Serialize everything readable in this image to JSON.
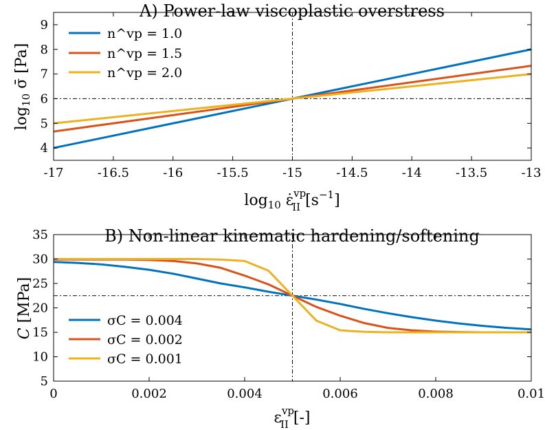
{
  "chart_data": [
    {
      "type": "line",
      "title": "A) Power-law viscoplastic overstress",
      "xlabel": "log10 ε̇II^vp [s^-1]",
      "ylabel": "log10 σ̄ [Pa]",
      "xlim": [
        -17,
        -13
      ],
      "ylim": [
        3.5,
        9.5
      ],
      "xticks": [
        -17,
        -16.5,
        -16,
        -15.5,
        -15,
        -14.5,
        -14,
        -13.5,
        -13
      ],
      "xtick_labels": [
        "-17",
        "-16.5",
        "-16",
        "-15.5",
        "-15",
        "-14.5",
        "-14",
        "-13.5",
        "-13"
      ],
      "yticks": [
        4,
        5,
        6,
        7,
        8,
        9
      ],
      "ytick_labels": [
        "4",
        "5",
        "6",
        "7",
        "8",
        "9"
      ],
      "grid": false,
      "legend_placement": "top-left",
      "reference_lines": {
        "x": -15,
        "y": 6
      },
      "x": [
        -17,
        -13
      ],
      "series": [
        {
          "name": "n^vp = 1.0",
          "color": "#0072BD",
          "values": [
            4.0,
            8.0
          ]
        },
        {
          "name": "n^vp = 1.5",
          "color": "#D95319",
          "values": [
            4.667,
            7.333
          ]
        },
        {
          "name": "n^vp = 2.0",
          "color": "#EDB120",
          "values": [
            5.0,
            7.0
          ]
        }
      ]
    },
    {
      "type": "line",
      "title": "B) Non-linear kinematic hardening/softening",
      "xlabel": "εII^vp [-]",
      "ylabel": "C [MPa]",
      "xlim": [
        0,
        0.01
      ],
      "ylim": [
        5,
        35
      ],
      "xticks": [
        0,
        0.002,
        0.004,
        0.006,
        0.008,
        0.01
      ],
      "xtick_labels": [
        "0",
        "0.002",
        "0.004",
        "0.006",
        "0.008",
        "0.01"
      ],
      "yticks": [
        5,
        10,
        15,
        20,
        25,
        30,
        35
      ],
      "ytick_labels": [
        "5",
        "10",
        "15",
        "20",
        "25",
        "30",
        "35"
      ],
      "grid": false,
      "legend_placement": "bottom-left",
      "reference_lines": {
        "x": 0.005,
        "y": 22.5
      },
      "x": [
        0,
        0.0005,
        0.001,
        0.0015,
        0.002,
        0.0025,
        0.003,
        0.0035,
        0.004,
        0.0045,
        0.005,
        0.0055,
        0.006,
        0.0065,
        0.007,
        0.0075,
        0.008,
        0.0085,
        0.009,
        0.0095,
        0.01
      ],
      "series": [
        {
          "name": "σC = 0.004",
          "color": "#0072BD",
          "values": [
            29.4,
            29.2,
            28.9,
            28.4,
            27.8,
            27.0,
            26.0,
            25.0,
            24.2,
            23.3,
            22.5,
            21.7,
            20.8,
            19.8,
            18.9,
            18.1,
            17.4,
            16.8,
            16.3,
            15.9,
            15.6
          ]
        },
        {
          "name": "σC = 0.002",
          "color": "#D95319",
          "values": [
            29.9,
            29.9,
            29.9,
            29.9,
            29.8,
            29.6,
            29.1,
            28.2,
            26.6,
            24.8,
            22.5,
            20.2,
            18.4,
            16.9,
            15.9,
            15.4,
            15.15,
            15.05,
            15.0,
            15.0,
            15.0
          ]
        },
        {
          "name": "σC = 0.001",
          "color": "#EDB120",
          "values": [
            30.0,
            30.0,
            30.0,
            30.0,
            30.0,
            30.0,
            30.0,
            29.9,
            29.6,
            27.6,
            22.5,
            17.4,
            15.4,
            15.1,
            15.0,
            15.0,
            15.0,
            15.0,
            15.0,
            15.0,
            15.0
          ]
        }
      ]
    }
  ]
}
